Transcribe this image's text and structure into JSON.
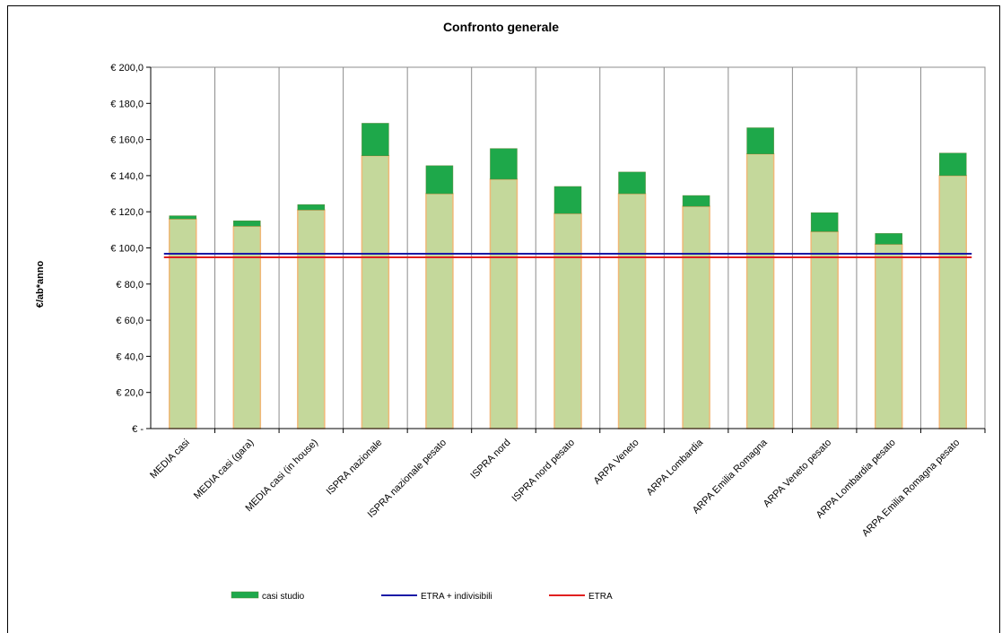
{
  "chart_data": {
    "type": "bar",
    "title": "Confronto generale",
    "ylabel": "€/ab*anno",
    "xlabel": "",
    "ylim": [
      0,
      200
    ],
    "yticks": [
      0,
      20,
      40,
      60,
      80,
      100,
      120,
      140,
      160,
      180,
      200
    ],
    "ytick_labels": [
      "€ -",
      "€ 20,0",
      "€ 40,0",
      "€ 60,0",
      "€ 80,0",
      "€ 100,0",
      "€ 120,0",
      "€ 140,0",
      "€ 160,0",
      "€ 180,0",
      "€ 200,0"
    ],
    "grid": "vertical category separators",
    "categories": [
      "MEDIA casi",
      "MEDIA casi (gara)",
      "MEDIA casi (in house)",
      "ISPRA nazionale",
      "ISPRA nazionale pesato",
      "ISPRA nord",
      "ISPRA nord pesato",
      "ARPA Veneto",
      "ARPA Lombardia",
      "ARPA Emilia Romagna",
      "ARPA Veneto pesato",
      "ARPA Lombardia pesato",
      "ARPA Emilia Romagna pesato"
    ],
    "series": [
      {
        "name": "casi studio",
        "kind": "stacked-bar",
        "color": "#1ea84a",
        "base_color": "#c4d89b",
        "base_border": "#f0b878",
        "base_values": [
          116,
          112,
          121,
          151,
          130,
          138,
          119,
          130,
          123,
          152,
          109,
          102,
          140
        ],
        "total_values": [
          117.8,
          115,
          124,
          169,
          145.5,
          155,
          134,
          142,
          129,
          166.5,
          119.5,
          108,
          152.5
        ]
      },
      {
        "name": "ETRA + indivisibili",
        "kind": "line",
        "color": "#1a1aa6",
        "value": 96.8
      },
      {
        "name": "ETRA",
        "kind": "line",
        "color": "#e02020",
        "value": 94.8
      }
    ],
    "legend_position": "bottom"
  }
}
